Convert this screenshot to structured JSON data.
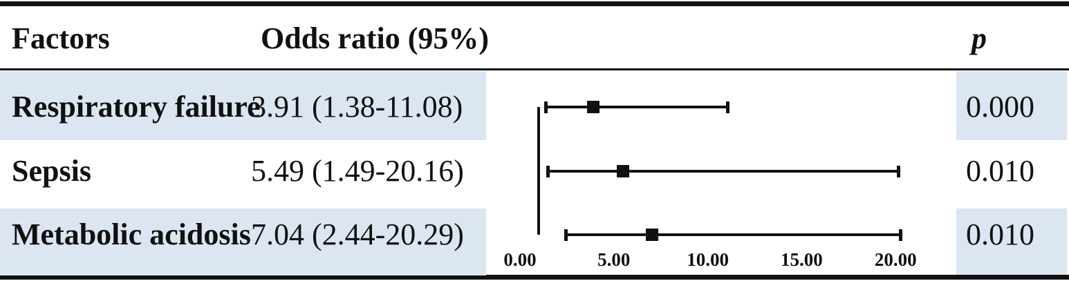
{
  "table": {
    "headers": {
      "factors": "Factors",
      "odds_ratio": "Odds ratio (95%)",
      "p": "p"
    },
    "rows": [
      {
        "factor": "Respiratory failure",
        "or_ci": "3.91 (1.38-11.08)",
        "p": "0.000"
      },
      {
        "factor": "Sepsis",
        "or_ci": "5.49 (1.49-20.16)",
        "p": "0.010"
      },
      {
        "factor": "Metabolic acidosis",
        "or_ci": "7.04 (2.44-20.29)",
        "p": "0.010"
      }
    ]
  },
  "colors": {
    "row_shading": "#dce6f2",
    "rule": "#111111",
    "text": "#111111",
    "marker": "#111111"
  },
  "chart_data": {
    "type": "scatter",
    "subtype": "forest-plot",
    "title": "",
    "xlabel": "",
    "ylabel": "",
    "grid": false,
    "legend": "none",
    "xlim": [
      0,
      22
    ],
    "reference_line_x": 1,
    "x_ticks": [
      {
        "label": "0.00",
        "value": 0
      },
      {
        "label": "5.00",
        "value": 5
      },
      {
        "label": "10.00",
        "value": 10
      },
      {
        "label": "15.00",
        "value": 15
      },
      {
        "label": "20.00",
        "value": 20
      }
    ],
    "points": [
      {
        "label": "Respiratory failure",
        "or": 3.91,
        "ci_low": 1.38,
        "ci_high": 11.08,
        "p": "0.000"
      },
      {
        "label": "Sepsis",
        "or": 5.49,
        "ci_low": 1.49,
        "ci_high": 20.16,
        "p": "0.010"
      },
      {
        "label": "Metabolic acidosis",
        "or": 7.04,
        "ci_low": 2.44,
        "ci_high": 20.29,
        "p": "0.010"
      }
    ]
  }
}
